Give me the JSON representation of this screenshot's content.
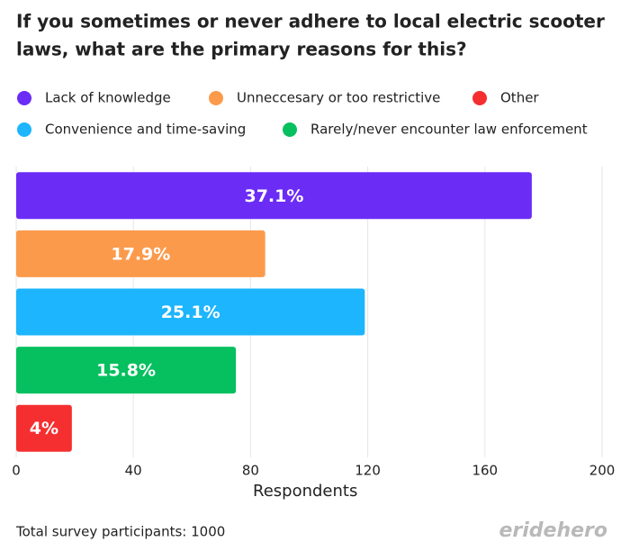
{
  "chart_data": {
    "type": "hbar",
    "title": [
      "If you sometimes or never adhere to local electric scooter",
      "laws, what are the primary reasons for this?"
    ],
    "categories": [
      "Lack of knowledge",
      "Unneccesary or too restrictive",
      "Convenience and time-saving",
      "Rarely/never encounter law enforcement",
      "Other"
    ],
    "values": [
      176,
      85,
      119,
      75,
      19
    ],
    "percent_labels": [
      "37.1%",
      "17.9%",
      "25.1%",
      "15.8%",
      "4%"
    ],
    "colors": [
      "#6b2cf5",
      "#fc9a4c",
      "#1db5fd",
      "#06c05f",
      "#f52f30"
    ],
    "xlim": [
      0,
      200
    ],
    "xticks": [
      0,
      40,
      80,
      120,
      160,
      200
    ],
    "xlabel": "Respondents",
    "grid": true,
    "footnote": "Total survey participants: 1000",
    "brand": "eridehero"
  }
}
